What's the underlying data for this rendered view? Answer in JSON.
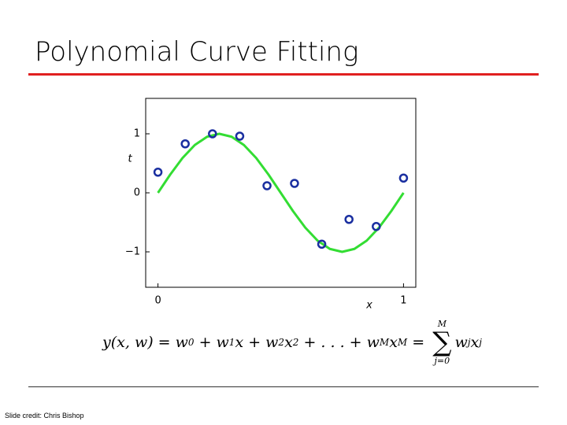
{
  "slide": {
    "title": "Polynomial Curve Fitting",
    "credit": "Slide credit: Chris Bishop",
    "equation": {
      "lhs": [
        {
          "text": "y(x, w) = w",
          "sub": "0"
        },
        {
          "text": " + w",
          "sub": "1"
        },
        {
          "text": "x + w",
          "sub": "2"
        },
        {
          "text": "x",
          "sup": "2"
        },
        {
          "text": " + . . . + w",
          "sub": "M"
        },
        {
          "text": "x",
          "sup": "M"
        },
        {
          "text": " = "
        }
      ],
      "sum": {
        "symbol": "∑",
        "over": "M",
        "under": "j=0"
      },
      "rhs": [
        {
          "text": "w",
          "sub": "j"
        },
        {
          "text": "x",
          "sup": "j"
        }
      ]
    }
  },
  "chart_data": {
    "type": "scatter",
    "xlabel": "x",
    "ylabel": "t",
    "xlim": [
      -0.05,
      1.05
    ],
    "ylim": [
      -1.6,
      1.6
    ],
    "xticks": [
      0,
      1
    ],
    "yticks": [
      {
        "value": -1,
        "label": "−1"
      },
      0,
      1
    ],
    "series": [
      {
        "type": "line",
        "color": "#33dd33",
        "x": [
          0,
          0.05,
          0.1,
          0.15,
          0.2,
          0.25,
          0.3,
          0.35,
          0.4,
          0.45,
          0.5,
          0.55,
          0.6,
          0.65,
          0.7,
          0.75,
          0.8,
          0.85,
          0.9,
          0.95,
          1
        ],
        "values": [
          0,
          0.31,
          0.59,
          0.81,
          0.95,
          1,
          0.95,
          0.81,
          0.59,
          0.31,
          0,
          -0.31,
          -0.59,
          -0.81,
          -0.95,
          -1,
          -0.95,
          -0.81,
          -0.59,
          -0.31,
          0
        ]
      },
      {
        "type": "scatter",
        "color": "#1a2fa0",
        "x": [
          0,
          0.111,
          0.222,
          0.333,
          0.444,
          0.556,
          0.667,
          0.778,
          0.889,
          1
        ],
        "values": [
          0.35,
          0.83,
          1.0,
          0.96,
          0.12,
          0.16,
          -0.87,
          -0.45,
          -0.57,
          0.25
        ]
      }
    ]
  }
}
